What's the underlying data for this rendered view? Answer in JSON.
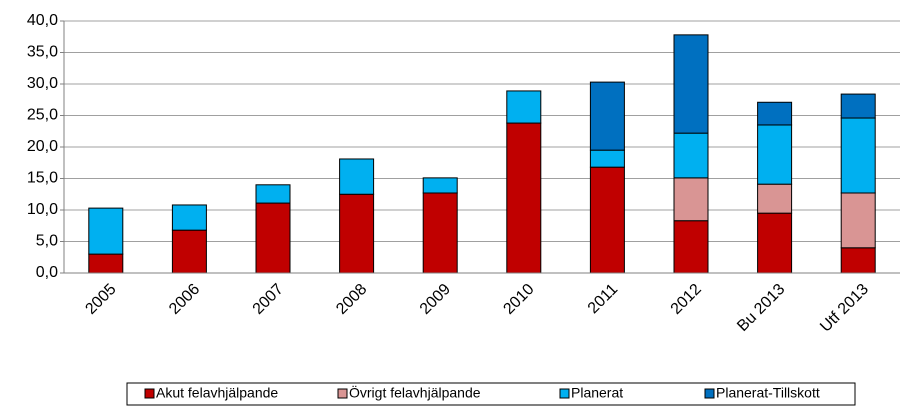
{
  "chart_data": {
    "type": "stacked_bar",
    "categories": [
      "2005",
      "2006",
      "2007",
      "2008",
      "2009",
      "2010",
      "2011",
      "2012",
      "Bu 2013",
      "Utf 2013"
    ],
    "series": [
      {
        "name": "Akut felavhjälpande",
        "color": "#c00000",
        "values": [
          3.0,
          6.8,
          11.1,
          12.5,
          12.7,
          23.8,
          16.8,
          8.3,
          9.5,
          4.0
        ]
      },
      {
        "name": "Övrigt felavhjälpande",
        "color": "#d99594",
        "values": [
          null,
          null,
          null,
          null,
          null,
          null,
          null,
          6.8,
          4.6,
          8.7
        ]
      },
      {
        "name": "Planerat",
        "color": "#00b0f0",
        "values": [
          7.3,
          4.0,
          2.9,
          5.6,
          2.4,
          5.1,
          2.7,
          7.1,
          9.4,
          11.9
        ]
      },
      {
        "name": "Planerat-Tillskott",
        "color": "#0070c0",
        "values": [
          null,
          null,
          null,
          null,
          null,
          null,
          10.8,
          15.6,
          3.6,
          3.8
        ]
      }
    ],
    "ylim": [
      0,
      40
    ],
    "yticks": [
      {
        "value": 0,
        "label": "0,0"
      },
      {
        "value": 5,
        "label": "5,0"
      },
      {
        "value": 10,
        "label": "10,0"
      },
      {
        "value": 15,
        "label": "15,0"
      },
      {
        "value": 20,
        "label": "20,0"
      },
      {
        "value": 25,
        "label": "25,0"
      },
      {
        "value": 30,
        "label": "30,0"
      },
      {
        "value": 35,
        "label": "35,0"
      },
      {
        "value": 40,
        "label": "40,0"
      }
    ],
    "grid": true,
    "legend": "bottom"
  }
}
